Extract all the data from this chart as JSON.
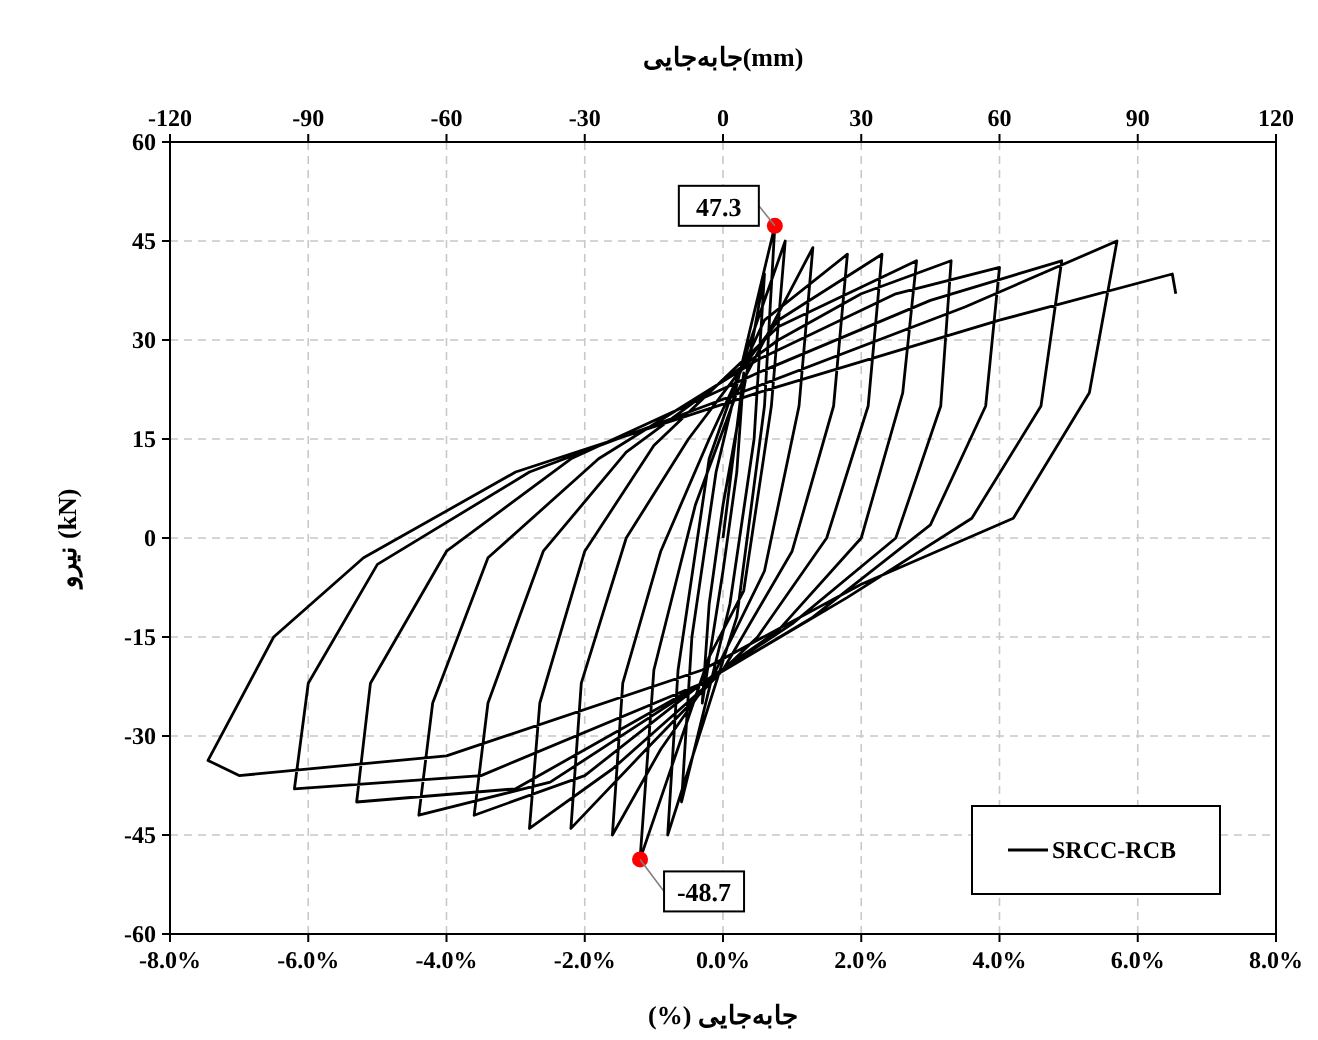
{
  "chart_data": {
    "type": "line",
    "xlabel": "جابه‌جایی (%)",
    "ylabel": "نیرو (kN)",
    "x2label": "جابه‌جایی(mm)",
    "xlim": [
      -8,
      8
    ],
    "xticks": [
      {
        "value": -8,
        "label": "-8.0%"
      },
      {
        "value": -6,
        "label": "-6.0%"
      },
      {
        "value": -4,
        "label": "-4.0%"
      },
      {
        "value": -2,
        "label": "-2.0%"
      },
      {
        "value": 0,
        "label": "0.0%"
      },
      {
        "value": 2,
        "label": "2.0%"
      },
      {
        "value": 4,
        "label": "4.0%"
      },
      {
        "value": 6,
        "label": "6.0%"
      },
      {
        "value": 8,
        "label": "8.0%"
      }
    ],
    "x2lim": [
      -120,
      120
    ],
    "x2ticks": [
      -120,
      -90,
      -60,
      -30,
      0,
      30,
      60,
      90,
      120
    ],
    "ylim": [
      -60,
      60
    ],
    "yticks": [
      -60,
      -45,
      -30,
      -15,
      0,
      15,
      30,
      45,
      60
    ],
    "grid": true,
    "legend": "bottom right",
    "series": [
      {
        "name": "SRCC-RCB",
        "color": "#000000",
        "line_style": "solid",
        "x": [
          0,
          0.3,
          0.2,
          0,
          -0.3,
          -0.2,
          0,
          0.6,
          0.45,
          0.1,
          -0.6,
          -0.45,
          -0.1,
          0.75,
          0.6,
          0.2,
          -0.8,
          -0.65,
          -0.2,
          0.9,
          0.7,
          0.3,
          -0.2,
          -1.2,
          -1.0,
          -0.4,
          0.2,
          1.3,
          1.1,
          0.6,
          -0.1,
          -0.9,
          -1.6,
          -1.45,
          -0.9,
          -0.2,
          0.6,
          1.8,
          1.6,
          1.0,
          0,
          -1.2,
          -2.2,
          -2.05,
          -1.4,
          -0.5,
          0.8,
          2.3,
          2.1,
          1.5,
          0.5,
          -0.2,
          -1.6,
          -2.8,
          -2.65,
          -2.0,
          -1.0,
          0.8,
          2.8,
          2.6,
          2.0,
          0.8,
          -0.3,
          -2.0,
          -3.6,
          -3.4,
          -2.6,
          -1.4,
          0.8,
          2.0,
          3.3,
          3.15,
          2.5,
          1.0,
          -0.3,
          -2.5,
          -4.4,
          -4.2,
          -3.4,
          -1.8,
          0.5,
          2.5,
          4.0,
          3.8,
          3.0,
          1.3,
          -0.3,
          -3.0,
          -5.3,
          -5.1,
          -4.0,
          -2.2,
          0.5,
          3.0,
          4.9,
          4.6,
          3.6,
          1.8,
          -0.3,
          -3.5,
          -6.2,
          -6.0,
          -5.0,
          -2.8,
          0.5,
          3.5,
          5.7,
          5.3,
          4.2,
          2.0,
          -0.3,
          -4.0,
          -7.0,
          -7.45,
          -6.5,
          -5.2,
          -3.0,
          0.5,
          4.0,
          6.5,
          6.55
        ],
        "values": [
          0,
          25,
          10,
          -5,
          -25,
          -10,
          5,
          40,
          15,
          -10,
          -40,
          -15,
          10,
          47.3,
          20,
          -12,
          -45,
          -20,
          12,
          45,
          20,
          -8,
          -18,
          -48.7,
          -20,
          5,
          22,
          44,
          20,
          -5,
          -20,
          -32,
          -45,
          -22,
          -2,
          15,
          33,
          43,
          20,
          -2,
          -20,
          -33,
          -44,
          -22,
          0,
          15,
          33,
          43,
          20,
          0,
          -15,
          -22,
          -35,
          -44,
          -25,
          -2,
          14,
          32,
          42,
          22,
          0,
          -14,
          -22,
          -36,
          -42,
          -25,
          -2,
          13,
          30,
          37,
          42,
          20,
          0,
          -13,
          -22,
          -37,
          -42,
          -25,
          -3,
          12,
          27,
          37,
          41,
          20,
          2,
          -12,
          -22,
          -38,
          -40,
          -22,
          -2,
          12,
          25,
          36,
          42,
          20,
          3,
          -9,
          -22,
          -36,
          -38,
          -22,
          -4,
          10,
          23,
          35,
          45,
          22,
          3,
          -7,
          -20,
          -33,
          -36,
          -33.7,
          -15,
          -3,
          10,
          22,
          33,
          40,
          37
        ]
      },
      {
        "type": "scatter",
        "color": "#ff0000",
        "marker": "circle",
        "x": [
          0.75,
          -1.2
        ],
        "values": [
          47.3,
          -48.7
        ],
        "value_labels": [
          "47.3",
          "-48.7"
        ]
      }
    ]
  }
}
